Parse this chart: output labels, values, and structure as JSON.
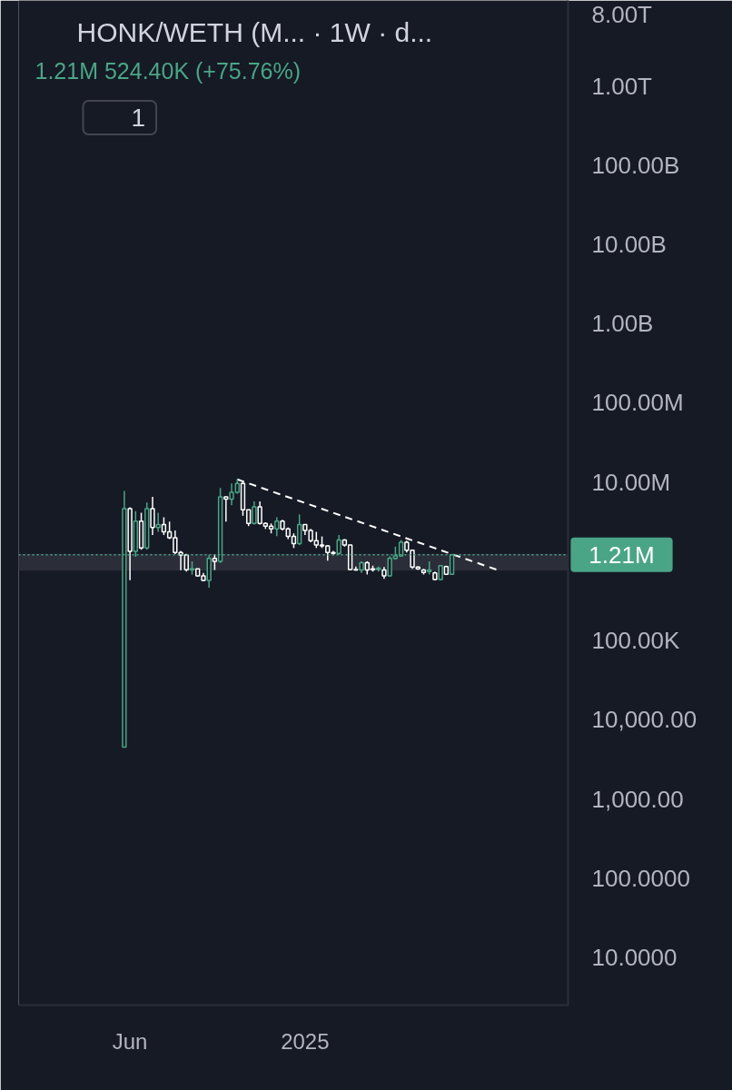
{
  "chart_data": {
    "type": "candlestick",
    "title": "HONK/WETH (M...  · 1W · d...",
    "subtitle": "1.21M 524.40K (+75.76%)",
    "annotations": [
      "1"
    ],
    "x": [
      "2024-05-27",
      "2024-06-03",
      "2024-06-10",
      "2024-06-17",
      "2024-06-24",
      "2024-07-01",
      "2024-07-08",
      "2024-07-15",
      "2024-07-22",
      "2024-07-29",
      "2024-08-05",
      "2024-08-12",
      "2024-08-19",
      "2024-08-26",
      "2024-09-02",
      "2024-09-09",
      "2024-09-16",
      "2024-09-23",
      "2024-09-30",
      "2024-10-07",
      "2024-10-14",
      "2024-10-21",
      "2024-10-28",
      "2024-11-04",
      "2024-11-11",
      "2024-11-18",
      "2024-11-25",
      "2024-12-02",
      "2024-12-09",
      "2024-12-16",
      "2024-12-23",
      "2024-12-30",
      "2025-01-06",
      "2025-01-13",
      "2025-01-20",
      "2025-01-27",
      "2025-02-03",
      "2025-02-10",
      "2025-02-17",
      "2025-02-24",
      "2025-03-03",
      "2025-03-10",
      "2025-03-17",
      "2025-03-24",
      "2025-03-31",
      "2025-04-07",
      "2025-04-14",
      "2025-04-21",
      "2025-04-28",
      "2025-05-05",
      "2025-05-12",
      "2025-05-19",
      "2025-05-26",
      "2025-06-02",
      "2025-06-09",
      "2025-06-16",
      "2025-06-23",
      "2025-06-30",
      "2025-07-07"
    ],
    "ohlc": [
      [
        4500,
        7700000,
        4500,
        4600000
      ],
      [
        4600000,
        4800000,
        575000,
        1330000
      ],
      [
        1330000,
        4300000,
        1140000,
        3200000
      ],
      [
        3200000,
        4100000,
        1400000,
        1470000
      ],
      [
        1470000,
        5500000,
        1400000,
        4600000
      ],
      [
        4600000,
        6500000,
        2150000,
        2670000
      ],
      [
        2670000,
        4100000,
        2350000,
        2900000
      ],
      [
        2900000,
        3600000,
        2150000,
        2350000
      ],
      [
        2350000,
        3160000,
        1900000,
        1980000
      ],
      [
        1980000,
        2450000,
        1230000,
        1290000
      ],
      [
        1290000,
        1350000,
        770000,
        1200000
      ],
      [
        1200000,
        1240000,
        740000,
        780000
      ],
      [
        780000,
        1000000,
        680000,
        800000
      ],
      [
        800000,
        810000,
        640000,
        653000
      ],
      [
        653000,
        712000,
        560000,
        574000
      ],
      [
        574000,
        1190000,
        464000,
        1090000
      ],
      [
        1090000,
        1230000,
        774000,
        1000000
      ],
      [
        1000000,
        8400000,
        950000,
        6500000
      ],
      [
        6500000,
        6600000,
        3160000,
        6100000
      ],
      [
        6100000,
        9600000,
        5100000,
        7400000
      ],
      [
        7400000,
        10900000,
        7100000,
        9600000
      ],
      [
        9600000,
        10400000,
        3750000,
        4450000
      ],
      [
        4450000,
        4500000,
        2780000,
        3000000
      ],
      [
        3000000,
        5700000,
        2900000,
        4850000
      ],
      [
        4850000,
        5700000,
        2900000,
        3000000
      ],
      [
        3000000,
        3100000,
        2560000,
        2780000
      ],
      [
        2780000,
        3000000,
        2250000,
        2560000
      ],
      [
        2560000,
        3600000,
        2070000,
        3200000
      ],
      [
        3200000,
        3330000,
        2450000,
        2560000
      ],
      [
        2560000,
        2670000,
        1900000,
        2060000
      ],
      [
        2060000,
        2250000,
        1470000,
        1670000
      ],
      [
        1670000,
        3900000,
        1600000,
        2900000
      ],
      [
        2900000,
        2950000,
        2150000,
        2450000
      ],
      [
        2450000,
        2560000,
        1740000,
        1820000
      ],
      [
        1820000,
        2350000,
        1470000,
        1600000
      ],
      [
        1600000,
        2060000,
        1470000,
        1560000
      ],
      [
        1560000,
        1600000,
        1020000,
        1290000
      ],
      [
        1290000,
        1350000,
        1190000,
        1260000
      ],
      [
        1260000,
        2150000,
        1200000,
        1850000
      ],
      [
        1850000,
        1900000,
        1530000,
        1600000
      ],
      [
        1600000,
        1620000,
        770000,
        788000
      ],
      [
        788000,
        860000,
        760000,
        774000
      ],
      [
        774000,
        1000000,
        712000,
        958000
      ],
      [
        958000,
        1000000,
        681000,
        774000
      ],
      [
        800000,
        880000,
        740000,
        780000
      ],
      [
        788000,
        860000,
        740000,
        820000
      ],
      [
        774000,
        845000,
        600000,
        653000
      ],
      [
        653000,
        1150000,
        640000,
        1090000
      ],
      [
        1090000,
        1530000,
        1050000,
        1170000
      ],
      [
        1170000,
        1850000,
        1140000,
        1740000
      ],
      [
        1740000,
        1820000,
        1290000,
        1380000
      ],
      [
        1380000,
        1400000,
        800000,
        845000
      ],
      [
        845000,
        860000,
        780000,
        800000
      ],
      [
        774000,
        800000,
        681000,
        723000
      ],
      [
        740000,
        1000000,
        681000,
        774000
      ],
      [
        712000,
        740000,
        574000,
        589000
      ],
      [
        589000,
        900000,
        574000,
        880000
      ],
      [
        860000,
        880000,
        670000,
        686000
      ],
      [
        686000,
        1240000,
        680000,
        1210000
      ]
    ],
    "colors": [
      "#4aa586",
      "#ffffff",
      "#4aa586",
      "#ffffff",
      "#4aa586",
      "#ffffff",
      "#4aa586",
      "#ffffff",
      "#ffffff",
      "#ffffff",
      "#ffffff",
      "#ffffff",
      "#4aa586",
      "#ffffff",
      "#ffffff",
      "#4aa586",
      "#ffffff",
      "#4aa586",
      "#ffffff",
      "#4aa586",
      "#4aa586",
      "#ffffff",
      "#ffffff",
      "#4aa586",
      "#ffffff",
      "#ffffff",
      "#ffffff",
      "#4aa586",
      "#ffffff",
      "#ffffff",
      "#ffffff",
      "#4aa586",
      "#ffffff",
      "#ffffff",
      "#ffffff",
      "#ffffff",
      "#ffffff",
      "#ffffff",
      "#4aa586",
      "#ffffff",
      "#ffffff",
      "#ffffff",
      "#4aa586",
      "#ffffff",
      "#ffffff",
      "#4aa586",
      "#ffffff",
      "#4aa586",
      "#4aa586",
      "#4aa586",
      "#ffffff",
      "#ffffff",
      "#ffffff",
      "#ffffff",
      "#4aa586",
      "#ffffff",
      "#4aa586",
      "#ffffff",
      "#4aa586"
    ],
    "series": [
      {
        "type": "line",
        "x": [
          "2024-10-14",
          "2025-09-01"
        ],
        "values": [
          10800000,
          780000
        ],
        "color": "#ffffff",
        "line_style": "dashed"
      }
    ],
    "ref_lines": [
      {
        "axis": "y",
        "value": 1210000,
        "label": "1.21M",
        "color": "#4aa586",
        "line_style": "dotted"
      }
    ],
    "bands": [
      {
        "axis": "y",
        "from": 760000,
        "to": 1240000,
        "color": "#2b2e39"
      }
    ],
    "log": true,
    "xlim": [
      "2024-01-17",
      "2025-11-28"
    ],
    "xticks": [
      {
        "value": "2024-06-03",
        "label": "Jun"
      },
      {
        "value": "2025-01-06",
        "label": "2025"
      }
    ],
    "ylim": [
      2.5,
      12000000000000
    ],
    "yticks": [
      {
        "value": 10,
        "label": "10.0000"
      },
      {
        "value": 100,
        "label": "100.0000"
      },
      {
        "value": 1000,
        "label": "1,000.00"
      },
      {
        "value": 10000,
        "label": "10,000.00"
      },
      {
        "value": 100000,
        "label": "100.00K"
      },
      {
        "value": 10000000,
        "label": "10.00M"
      },
      {
        "value": 100000000,
        "label": "100.00M"
      },
      {
        "value": 1000000000,
        "label": "1.00B"
      },
      {
        "value": 10000000000,
        "label": "10.00B"
      },
      {
        "value": 100000000000,
        "label": "100.00B"
      },
      {
        "value": 1000000000000,
        "label": "1.00T"
      },
      {
        "value": 8000000000000,
        "label": "8.00T"
      }
    ]
  }
}
